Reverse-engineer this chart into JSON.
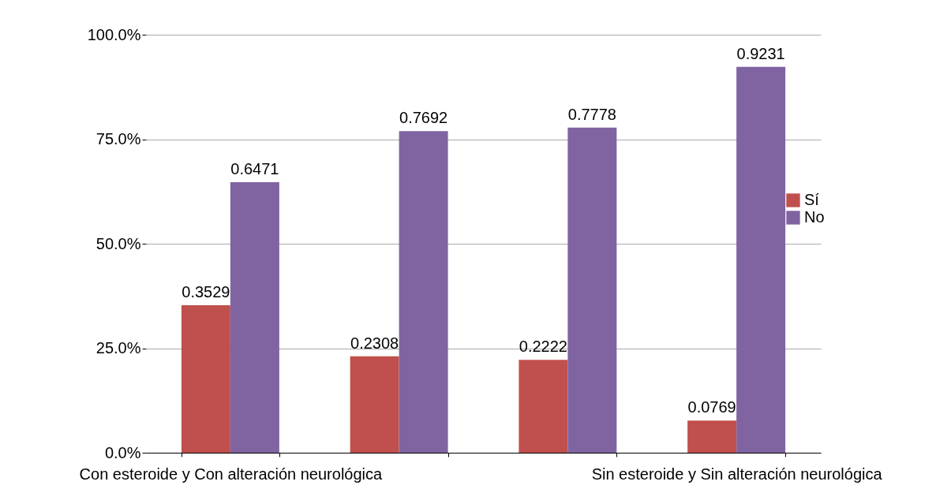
{
  "chart_data": {
    "type": "bar",
    "categories": [
      "Con esteroide y  Con alteración neurológica",
      null,
      null,
      "Sin esteroide y Sin alteración neurológica"
    ],
    "series": [
      {
        "name": "Sí",
        "color": "#c0504d",
        "values": [
          0.3529,
          0.2308,
          0.2222,
          0.0769
        ]
      },
      {
        "name": "No",
        "color": "#8064a2",
        "values": [
          0.6471,
          0.7692,
          0.7778,
          0.9231
        ]
      }
    ],
    "ylim": [
      0,
      1
    ],
    "yticks": [
      {
        "value": 0,
        "label": "0.0%"
      },
      {
        "value": 0.25,
        "label": "25.0%"
      },
      {
        "value": 0.5,
        "label": "50.0%"
      },
      {
        "value": 0.75,
        "label": "75.0%"
      },
      {
        "value": 1,
        "label": "100.0%"
      }
    ],
    "grid": "y",
    "legend": "right",
    "data_labels": true
  }
}
